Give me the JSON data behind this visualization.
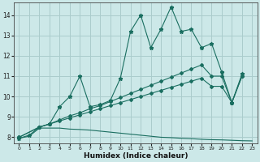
{
  "xlabel": "Humidex (Indice chaleur)",
  "bg_color": "#cce8e8",
  "grid_color": "#aacccc",
  "line_color": "#1a6e60",
  "xlim": [
    -0.5,
    23.5
  ],
  "ylim": [
    7.7,
    14.6
  ],
  "xticks": [
    0,
    1,
    2,
    3,
    4,
    5,
    6,
    7,
    8,
    9,
    10,
    11,
    12,
    13,
    14,
    15,
    16,
    17,
    18,
    19,
    20,
    21,
    22,
    23
  ],
  "yticks": [
    8,
    9,
    10,
    11,
    12,
    13,
    14
  ],
  "line1_x": [
    0,
    1,
    2,
    3,
    4,
    5,
    6,
    7,
    8,
    9,
    10,
    11,
    12,
    13,
    14,
    15,
    16,
    17,
    18,
    19,
    20,
    21,
    22
  ],
  "line1_y": [
    7.95,
    8.1,
    8.5,
    8.65,
    9.5,
    10.0,
    11.0,
    9.5,
    9.6,
    9.8,
    10.9,
    13.2,
    14.0,
    12.4,
    13.3,
    14.4,
    13.2,
    13.3,
    12.4,
    12.6,
    11.2,
    9.7,
    11.1
  ],
  "line2_x": [
    0,
    2,
    3,
    4,
    5,
    6,
    7,
    8,
    9,
    10,
    11,
    12,
    13,
    14,
    15,
    16,
    17,
    18,
    19,
    20,
    21,
    22
  ],
  "line2_y": [
    8.0,
    8.5,
    8.65,
    8.85,
    9.05,
    9.2,
    9.4,
    9.55,
    9.75,
    9.95,
    10.15,
    10.35,
    10.55,
    10.75,
    10.95,
    11.15,
    11.35,
    11.55,
    11.0,
    11.0,
    9.7,
    11.0
  ],
  "line3_x": [
    0,
    2,
    3,
    4,
    5,
    6,
    7,
    8,
    9,
    10,
    11,
    12,
    13,
    14,
    15,
    16,
    17,
    18,
    19,
    20,
    21,
    22
  ],
  "line3_y": [
    8.0,
    8.5,
    8.65,
    8.8,
    8.95,
    9.1,
    9.25,
    9.4,
    9.55,
    9.7,
    9.85,
    10.0,
    10.15,
    10.3,
    10.45,
    10.6,
    10.75,
    10.9,
    10.5,
    10.5,
    9.7,
    11.0
  ],
  "line4_x": [
    0,
    1,
    2,
    3,
    4,
    5,
    6,
    7,
    8,
    9,
    10,
    11,
    12,
    13,
    14,
    15,
    16,
    17,
    18,
    19,
    20,
    21,
    22,
    23
  ],
  "line4_y": [
    7.95,
    8.05,
    8.45,
    8.45,
    8.45,
    8.4,
    8.38,
    8.35,
    8.3,
    8.25,
    8.2,
    8.15,
    8.1,
    8.05,
    8.0,
    7.98,
    7.95,
    7.93,
    7.9,
    7.88,
    7.87,
    7.85,
    7.83,
    7.82
  ]
}
